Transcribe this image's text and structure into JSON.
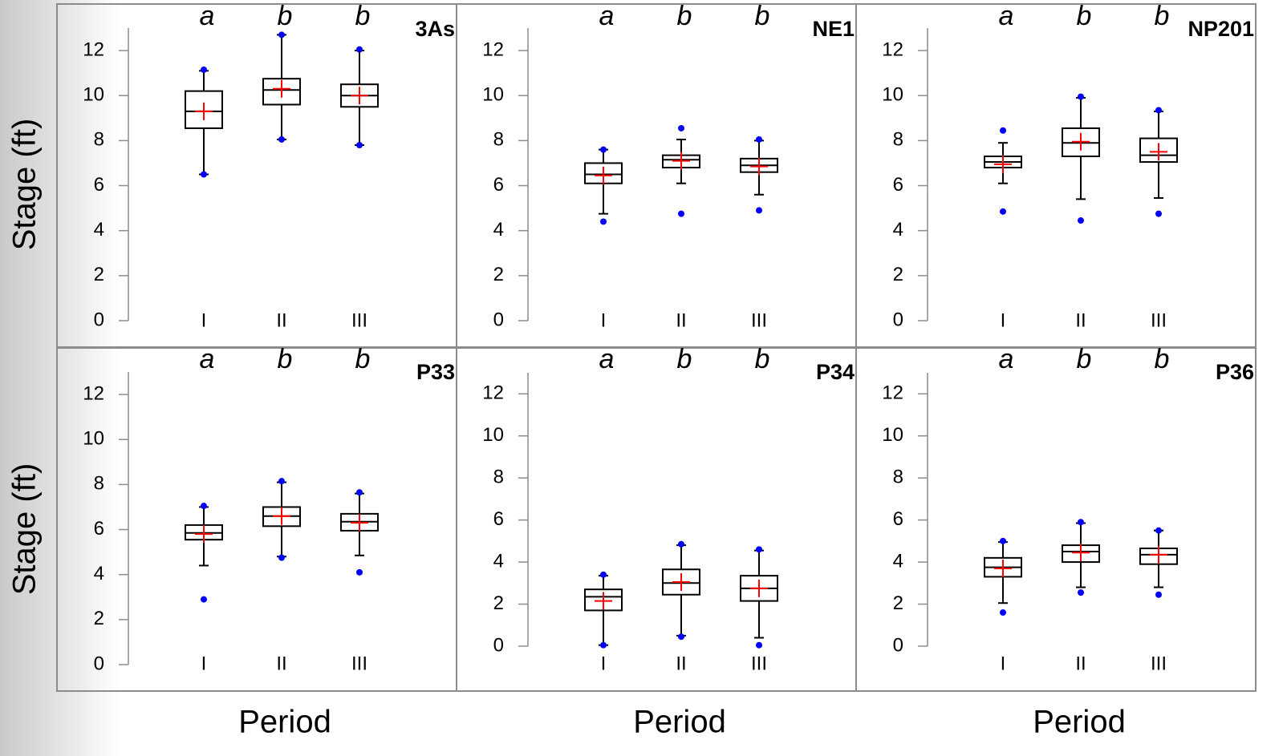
{
  "axis_titles": {
    "y": [
      "Stage (ft)",
      "Stage (ft)"
    ],
    "x": [
      "Period",
      "Period",
      "Period"
    ]
  },
  "chart_data": [
    {
      "type": "box",
      "title": "3As",
      "categories": [
        "I",
        "II",
        "III"
      ],
      "annotations": [
        "a",
        "b",
        "b"
      ],
      "colors": {
        "box": "#000000",
        "mean": "#ff0000",
        "extremes": "#0000ff"
      },
      "min": [
        6.5,
        8.05,
        7.8
      ],
      "whisker_low": [
        6.5,
        8.05,
        7.8
      ],
      "q1": [
        8.55,
        9.6,
        9.5
      ],
      "median": [
        9.3,
        10.25,
        10.0
      ],
      "q3": [
        10.2,
        10.75,
        10.5
      ],
      "whisker_high": [
        11.1,
        12.7,
        12.0
      ],
      "max": [
        11.15,
        12.7,
        12.05
      ],
      "mean": [
        9.3,
        10.3,
        10.0
      ],
      "ylim": [
        0,
        13
      ],
      "yticks": [
        0,
        2,
        4,
        6,
        8,
        10,
        12
      ]
    },
    {
      "type": "box",
      "title": "NE1",
      "categories": [
        "I",
        "II",
        "III"
      ],
      "annotations": [
        "a",
        "b",
        "b"
      ],
      "colors": {
        "box": "#000000",
        "mean": "#ff0000",
        "extremes": "#0000ff"
      },
      "min": [
        4.4,
        4.75,
        4.9
      ],
      "whisker_low": [
        4.75,
        6.1,
        5.6
      ],
      "q1": [
        6.1,
        6.8,
        6.6
      ],
      "median": [
        6.5,
        7.15,
        6.9
      ],
      "q3": [
        7.0,
        7.35,
        7.2
      ],
      "whisker_high": [
        7.6,
        8.05,
        8.0
      ],
      "max": [
        7.6,
        8.55,
        8.05
      ],
      "mean": [
        6.45,
        7.1,
        6.85
      ],
      "ylim": [
        0,
        13
      ],
      "yticks": [
        0,
        2,
        4,
        6,
        8,
        10,
        12
      ]
    },
    {
      "type": "box",
      "title": "NP201",
      "categories": [
        "I",
        "II",
        "III"
      ],
      "annotations": [
        "a",
        "b",
        "b"
      ],
      "colors": {
        "box": "#000000",
        "mean": "#ff0000",
        "extremes": "#0000ff"
      },
      "min": [
        4.85,
        4.45,
        4.75
      ],
      "whisker_low": [
        6.1,
        5.4,
        5.45
      ],
      "q1": [
        6.8,
        7.3,
        7.05
      ],
      "median": [
        7.05,
        7.9,
        7.35
      ],
      "q3": [
        7.3,
        8.55,
        8.1
      ],
      "whisker_high": [
        7.9,
        9.9,
        9.3
      ],
      "max": [
        8.45,
        9.95,
        9.35
      ],
      "mean": [
        6.95,
        7.95,
        7.5
      ],
      "ylim": [
        0,
        13
      ],
      "yticks": [
        0,
        2,
        4,
        6,
        8,
        10,
        12
      ]
    },
    {
      "type": "box",
      "title": "P33",
      "categories": [
        "I",
        "II",
        "III"
      ],
      "annotations": [
        "a",
        "b",
        "b"
      ],
      "colors": {
        "box": "#000000",
        "mean": "#ff0000",
        "extremes": "#0000ff"
      },
      "min": [
        2.9,
        4.75,
        4.1
      ],
      "whisker_low": [
        4.4,
        4.8,
        4.85
      ],
      "q1": [
        5.55,
        6.15,
        5.95
      ],
      "median": [
        5.85,
        6.6,
        6.35
      ],
      "q3": [
        6.2,
        7.0,
        6.7
      ],
      "whisker_high": [
        7.0,
        8.1,
        7.6
      ],
      "max": [
        7.05,
        8.15,
        7.65
      ],
      "mean": [
        5.8,
        6.6,
        6.3
      ],
      "ylim": [
        0,
        13
      ],
      "yticks": [
        0,
        2,
        4,
        6,
        8,
        10,
        12
      ]
    },
    {
      "type": "box",
      "title": "P34",
      "categories": [
        "I",
        "II",
        "III"
      ],
      "annotations": [
        "a",
        "b",
        "b"
      ],
      "colors": {
        "box": "#000000",
        "mean": "#ff0000",
        "extremes": "#0000ff"
      },
      "min": [
        0.05,
        0.45,
        0.05
      ],
      "whisker_low": [
        0.05,
        0.5,
        0.4
      ],
      "q1": [
        1.7,
        2.45,
        2.15
      ],
      "median": [
        2.35,
        3.0,
        2.75
      ],
      "q3": [
        2.7,
        3.65,
        3.35
      ],
      "whisker_high": [
        3.35,
        4.8,
        4.55
      ],
      "max": [
        3.4,
        4.85,
        4.6
      ],
      "mean": [
        2.15,
        3.05,
        2.75
      ],
      "ylim": [
        0,
        13
      ],
      "yticks": [
        0,
        2,
        4,
        6,
        8,
        10,
        12
      ]
    },
    {
      "type": "box",
      "title": "P36",
      "categories": [
        "I",
        "II",
        "III"
      ],
      "annotations": [
        "a",
        "b",
        "b"
      ],
      "colors": {
        "box": "#000000",
        "mean": "#ff0000",
        "extremes": "#0000ff"
      },
      "min": [
        1.6,
        2.55,
        2.45
      ],
      "whisker_low": [
        2.05,
        2.8,
        2.8
      ],
      "q1": [
        3.3,
        4.0,
        3.9
      ],
      "median": [
        3.75,
        4.5,
        4.35
      ],
      "q3": [
        4.2,
        4.8,
        4.65
      ],
      "whisker_high": [
        4.95,
        5.85,
        5.5
      ],
      "max": [
        5.0,
        5.9,
        5.5
      ],
      "mean": [
        3.7,
        4.45,
        4.35
      ],
      "ylim": [
        0,
        13
      ],
      "yticks": [
        0,
        2,
        4,
        6,
        8,
        10,
        12
      ]
    }
  ]
}
